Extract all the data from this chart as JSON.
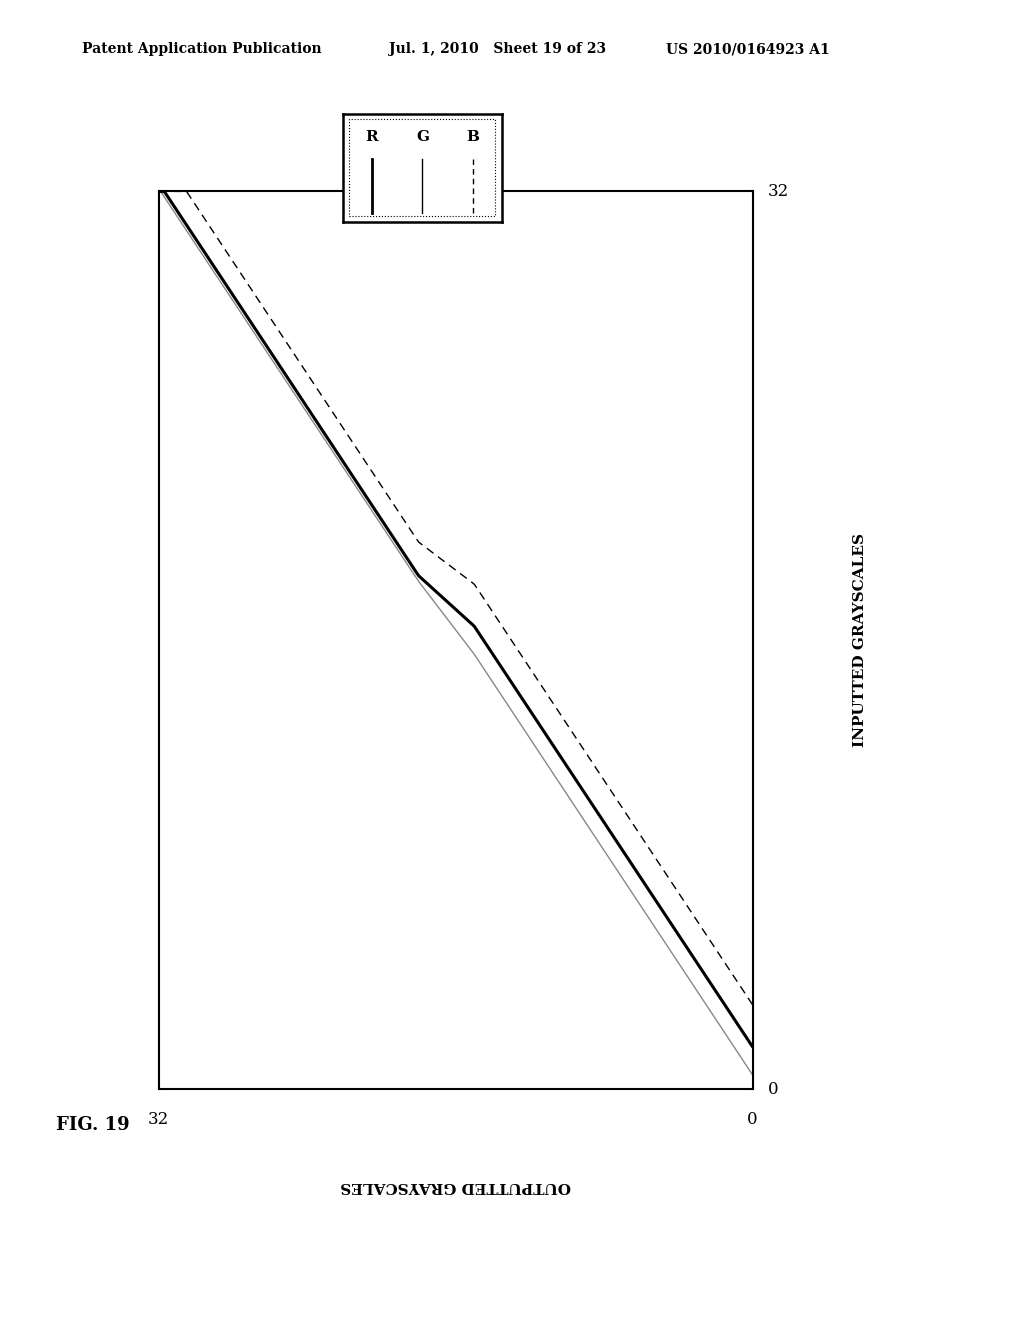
{
  "header_left": "Patent Application Publication",
  "header_mid": "Jul. 1, 2010   Sheet 19 of 23",
  "header_right": "US 2010/0164923 A1",
  "fig_label": "FIG. 19",
  "xlabel_label": "OUTPUTTED GRAYSCALES",
  "ylabel_label": "INPUTTED GRAYSCALES",
  "axis_max": 32,
  "axis_min": 0,
  "background_color": "#ffffff",
  "legend_labels": [
    "R",
    "G",
    "B"
  ],
  "header_fontsize": 10,
  "tick_label_fontsize": 12,
  "axis_label_fontsize": 11,
  "fig_label_fontsize": 13
}
